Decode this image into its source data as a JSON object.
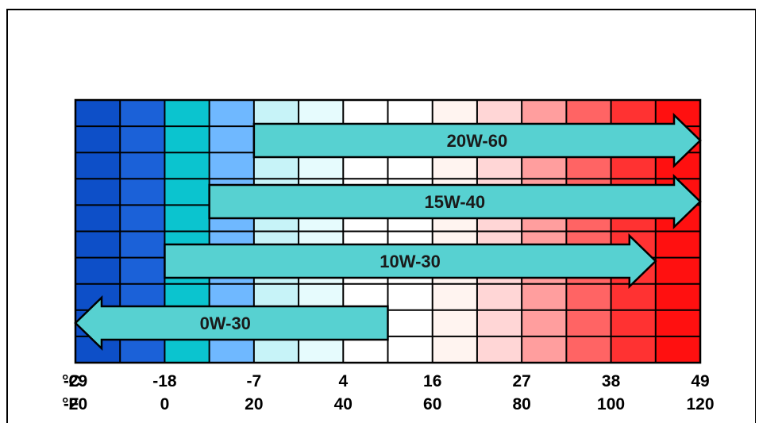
{
  "chart_data": {
    "type": "bar",
    "title": "",
    "xlabel": "",
    "ylabel": "",
    "units": {
      "celsius": "°C",
      "fahrenheit": "°F"
    },
    "temperature_scale": {
      "celsius": [
        "-29",
        "-18",
        "-7",
        "4",
        "16",
        "27",
        "38",
        "49"
      ],
      "fahrenheit": [
        "-20",
        "0",
        "20",
        "40",
        "60",
        "80",
        "100",
        "120"
      ]
    },
    "x_range_F": [
      -20,
      120
    ],
    "series": [
      {
        "name": "20W-60",
        "start_F": 20,
        "end_F": 120,
        "direction": "right"
      },
      {
        "name": "15W-40",
        "start_F": 10,
        "end_F": 120,
        "direction": "right"
      },
      {
        "name": "10W-30",
        "start_F": 0,
        "end_F": 110,
        "direction": "right"
      },
      {
        "name": "0W-30",
        "start_F": 50,
        "end_F": -20,
        "direction": "left"
      }
    ],
    "colors": {
      "arrow_fill": "#57d1d1",
      "background_bands": [
        "#0d4fc8",
        "#1b61d8",
        "#0bc4cf",
        "#6fb8ff",
        "#c7f3f8",
        "#e6fbfd",
        "#ffffff",
        "#ffffff",
        "#fff4f0",
        "#ffd6d6",
        "#ff9e9e",
        "#ff6464",
        "#ff3232",
        "#ff1010"
      ]
    },
    "grid": true
  }
}
